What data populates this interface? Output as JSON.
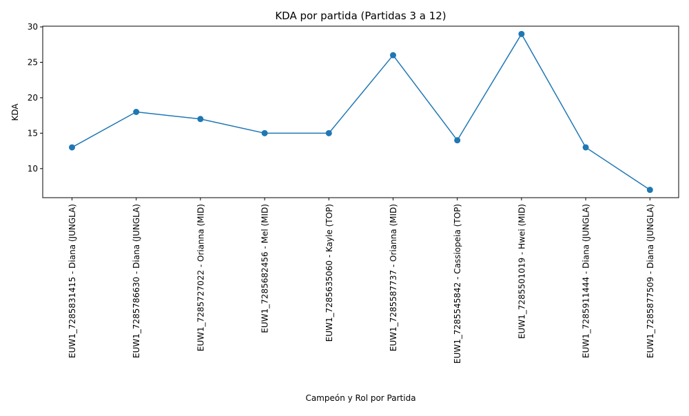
{
  "chart_data": {
    "type": "line",
    "title": "KDA por partida (Partidas 3 a 12)",
    "xlabel": "Campeón y Rol por Partida",
    "ylabel": "KDA",
    "categories": [
      "EUW1_7285831415 - Diana (JUNGLA)",
      "EUW1_7285786630 - Diana (JUNGLA)",
      "EUW1_7285727022 - Orianna (MID)",
      "EUW1_7285682456 - Mel (MID)",
      "EUW1_7285635060 - Kayle (TOP)",
      "EUW1_7285587737 - Orianna (MID)",
      "EUW1_7285545842 - Cassiopeia (TOP)",
      "EUW1_7285501019 - Hwei (MID)",
      "EUW1_7285911444 - Diana (JUNGLA)",
      "EUW1_7285877509 - Diana (JUNGLA)"
    ],
    "series": [
      {
        "name": "",
        "values": [
          13,
          18,
          17,
          15,
          15,
          26,
          14,
          29,
          13,
          7
        ],
        "color": "#1f77b4",
        "marker": "circle"
      }
    ],
    "ylim": [
      5.9,
      30.1
    ],
    "yticks": [
      "10",
      "15",
      "20",
      "25",
      "30"
    ],
    "grid": false,
    "legend": "none"
  }
}
